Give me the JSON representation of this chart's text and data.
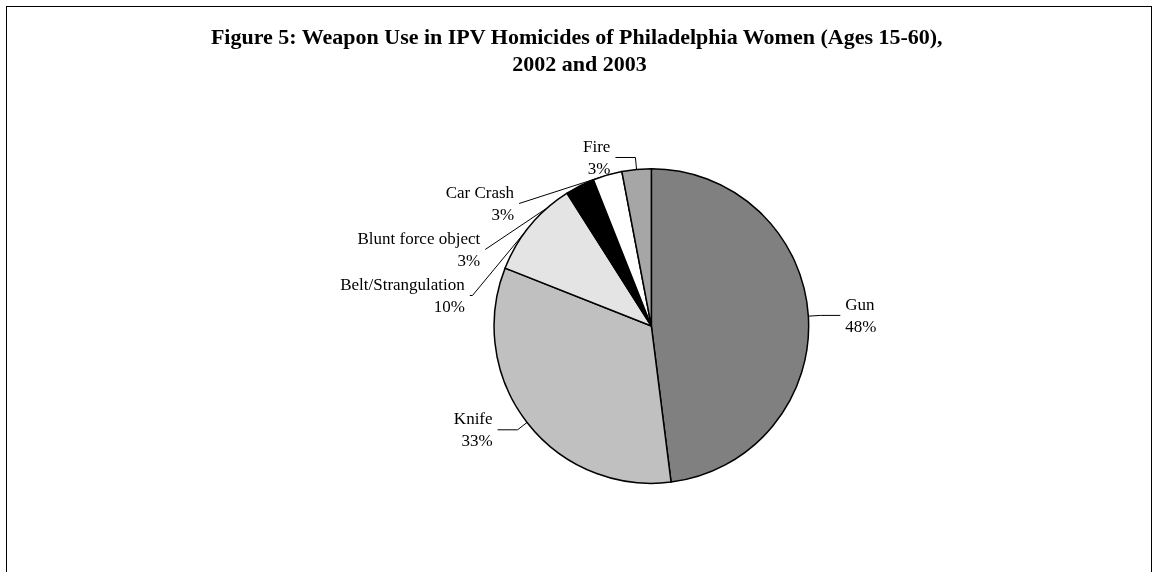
{
  "chart_data": {
    "type": "pie",
    "title": "Figure 5: Weapon Use in IPV Homicides of Philadelphia Women (Ages 15-60), 2002 and 2003",
    "categories": [
      "Gun",
      "Knife",
      "Belt/Strangulation",
      "Blunt force object",
      "Car Crash",
      "Fire"
    ],
    "values": [
      48,
      33,
      10,
      3,
      3,
      3
    ],
    "value_labels": [
      "48%",
      "33%",
      "10%",
      "3%",
      "3%",
      "3%"
    ],
    "colors": [
      "#808080",
      "#c0c0c0",
      "#e4e4e4",
      "#000000",
      "#ffffff",
      "#a6a6a6"
    ],
    "legend": false
  }
}
